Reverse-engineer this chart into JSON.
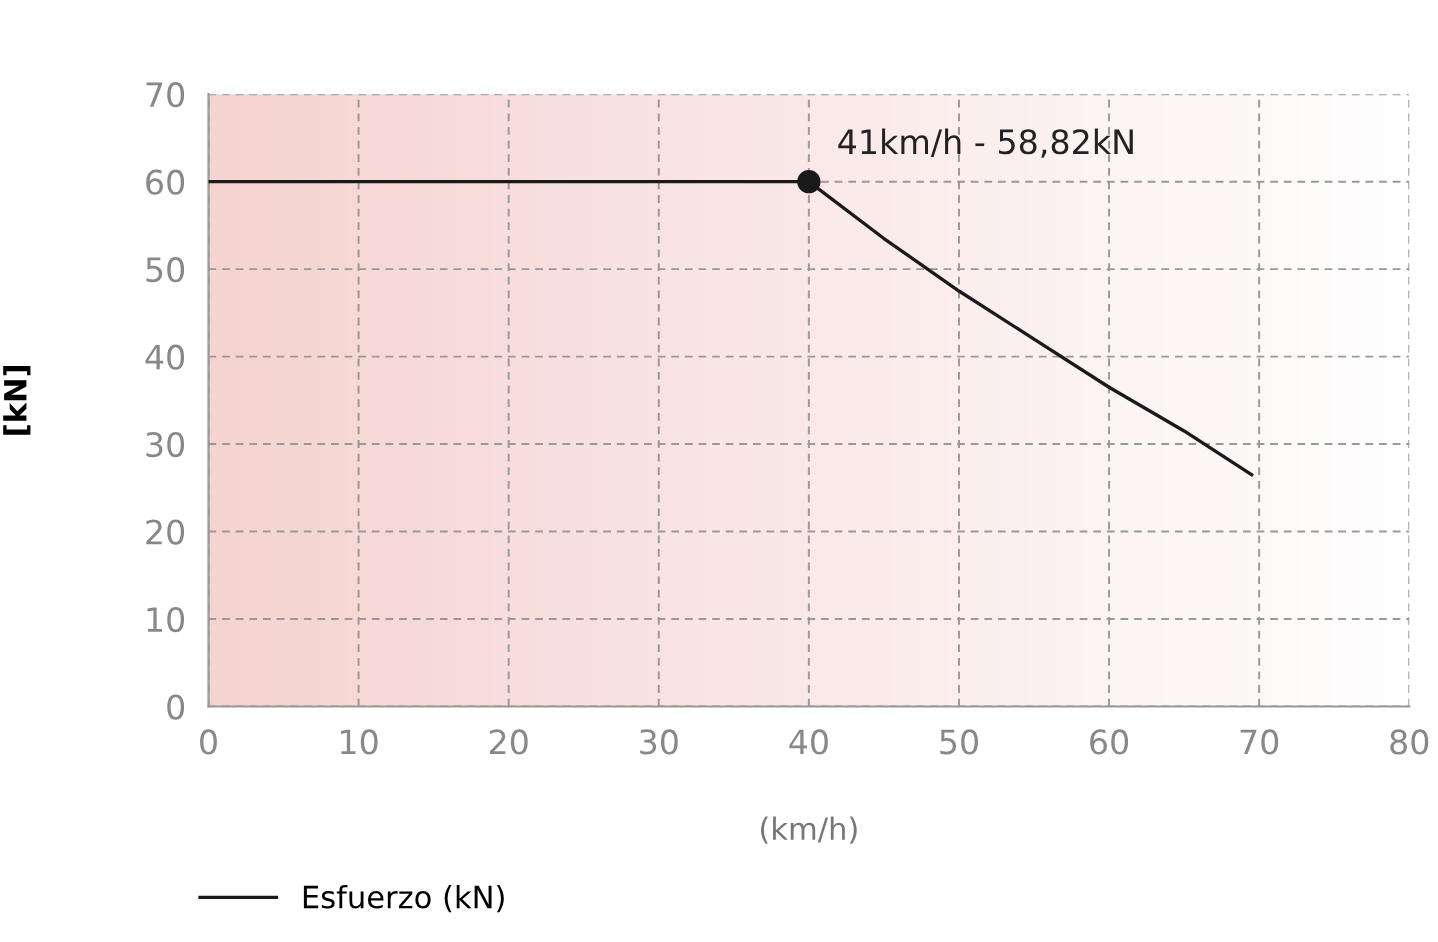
{
  "chart_data": {
    "type": "line",
    "xlabel": "(km/h)",
    "ylabel": "[kN]",
    "series": [
      {
        "name": "Esfuerzo (kN)",
        "color": "#1a1a1a",
        "x": [
          0,
          40,
          45,
          50,
          55,
          60,
          65,
          69.5
        ],
        "values": [
          60,
          60,
          53.5,
          47.5,
          42,
          36.5,
          31.5,
          26.5
        ]
      },
      {
        "type": "scatter",
        "color": "#1a1a1a",
        "x": [
          40
        ],
        "values": [
          60
        ],
        "marker": "circle"
      }
    ],
    "annotations": [
      {
        "text": "41km/h - 58,82kN",
        "x": 40,
        "y": 60
      }
    ],
    "xlim": [
      0,
      80
    ],
    "ylim": [
      0,
      70
    ],
    "xticks": [
      0,
      10,
      20,
      30,
      40,
      50,
      60,
      70,
      80
    ],
    "yticks": [
      0,
      10,
      20,
      30,
      40,
      50,
      60,
      70
    ],
    "grid": true,
    "legend": "bottom left"
  }
}
